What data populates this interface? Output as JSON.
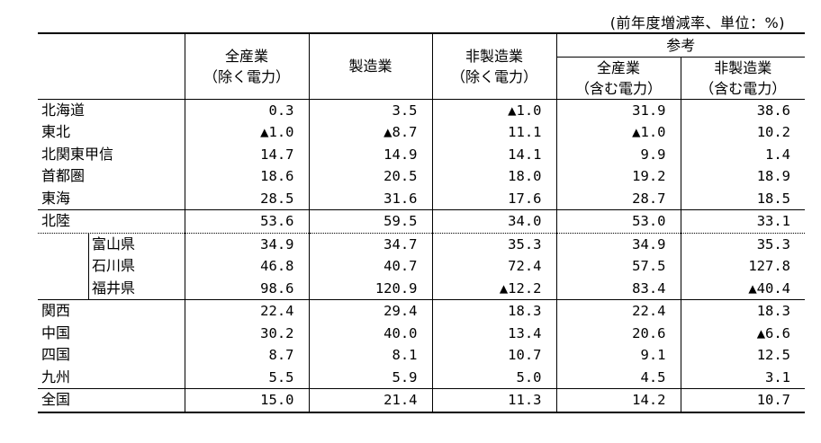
{
  "unit_note": "(前年度増減率、単位：%)",
  "headers": {
    "all_industry": [
      "全産業",
      "（除く電力）"
    ],
    "manufacturing": "製造業",
    "non_manufacturing": [
      "非製造業",
      "（除く電力）"
    ],
    "reference": "参考",
    "ref_all": [
      "全産業",
      "（含む電力）"
    ],
    "ref_non": [
      "非製造業",
      "（含む電力）"
    ]
  },
  "rows": [
    {
      "label": "北海道",
      "values": [
        "0.3",
        "3.5",
        "▲1.0",
        "31.9",
        "38.6"
      ]
    },
    {
      "label": "東北",
      "values": [
        "▲1.0",
        "▲8.7",
        "11.1",
        "▲1.0",
        "10.2"
      ]
    },
    {
      "label": "北関東甲信",
      "values": [
        "14.7",
        "14.9",
        "14.1",
        "9.9",
        "1.4"
      ]
    },
    {
      "label": "首都圏",
      "values": [
        "18.6",
        "20.5",
        "18.0",
        "19.2",
        "18.9"
      ]
    },
    {
      "label": "東海",
      "values": [
        "28.5",
        "31.6",
        "17.6",
        "28.7",
        "18.5"
      ]
    },
    {
      "label": "北陸",
      "values": [
        "53.6",
        "59.5",
        "34.0",
        "53.0",
        "33.1"
      ]
    },
    {
      "label": "富山県",
      "values": [
        "34.9",
        "34.7",
        "35.3",
        "34.9",
        "35.3"
      ]
    },
    {
      "label": "石川県",
      "values": [
        "46.8",
        "40.7",
        "72.4",
        "57.5",
        "127.8"
      ]
    },
    {
      "label": "福井県",
      "values": [
        "98.6",
        "120.9",
        "▲12.2",
        "83.4",
        "▲40.4"
      ]
    },
    {
      "label": "関西",
      "values": [
        "22.4",
        "29.4",
        "18.3",
        "22.4",
        "18.3"
      ]
    },
    {
      "label": "中国",
      "values": [
        "30.2",
        "40.0",
        "13.4",
        "20.6",
        "▲6.6"
      ]
    },
    {
      "label": "四国",
      "values": [
        "8.7",
        "8.1",
        "10.7",
        "9.1",
        "12.5"
      ]
    },
    {
      "label": "九州",
      "values": [
        "5.5",
        "5.9",
        "5.0",
        "4.5",
        "3.1"
      ]
    },
    {
      "label": "全国",
      "values": [
        "15.0",
        "21.4",
        "11.3",
        "14.2",
        "10.7"
      ]
    }
  ]
}
